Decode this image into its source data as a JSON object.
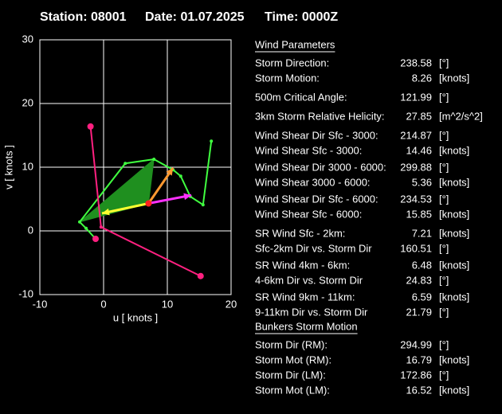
{
  "header": {
    "station": "Station: 08001",
    "date": "Date: 01.07.2025",
    "time": "Time: 0000Z"
  },
  "chart_data": {
    "type": "hodograph",
    "x_label": "u  [ knots ]",
    "y_label": "v  [ knots ]",
    "xlim": [
      -10,
      20
    ],
    "ylim": [
      -10,
      30
    ],
    "xticks": [
      -10,
      0,
      10,
      20
    ],
    "yticks": [
      -10,
      0,
      10,
      20,
      30
    ],
    "grid": true,
    "series": [
      {
        "kind": "area",
        "color": "#1f8f1f",
        "x": [
          -3.75,
          7.9,
          7.05
        ],
        "values": [
          1.4,
          11.25,
          4.31
        ]
      },
      {
        "kind": "line",
        "color": "#40ff40",
        "x": [
          -1.25,
          -2.75,
          -3.75,
          3.4,
          7.9,
          10.9,
          12.1,
          13.6,
          15.6,
          16.9
        ],
        "values": [
          -1.25,
          0.4,
          1.4,
          10.6,
          11.25,
          9.6,
          8.6,
          5.4,
          4.1,
          14.1
        ]
      },
      {
        "kind": "line",
        "color": "#ff2080",
        "x": [
          -2.05,
          -0.4,
          15.22
        ],
        "values": [
          16.39,
          0.6,
          -7.09
        ]
      },
      {
        "kind": "arrow",
        "color": "#ffff30",
        "x": [
          7.05,
          -0.25
        ],
        "values": [
          4.31,
          2.75
        ]
      },
      {
        "kind": "arrow",
        "color": "#ff9930",
        "x": [
          7.05,
          10.9
        ],
        "values": [
          4.31,
          9.9
        ]
      },
      {
        "kind": "arrow",
        "color": "#ff30ff",
        "x": [
          7.05,
          13.75
        ],
        "values": [
          4.31,
          5.6
        ]
      },
      {
        "kind": "points",
        "color": "#ff2020",
        "x": [
          7.05
        ],
        "values": [
          4.31
        ]
      },
      {
        "kind": "points",
        "color": "#ff2080",
        "x": [
          -2.05,
          15.22,
          -1.25
        ],
        "values": [
          16.39,
          -7.09,
          -1.25
        ]
      }
    ]
  },
  "wind_parameters": {
    "title": "Wind Parameters",
    "rows": [
      {
        "label": "Storm Direction:",
        "value": 238.58,
        "unit": "[°]",
        "color": "#ff2020"
      },
      {
        "label": "Storm Motion:",
        "value": 8.26,
        "unit": "[knots]",
        "color": "#ff2020"
      },
      {
        "label": "500m Critical Angle:",
        "value": 121.99,
        "unit": "[°]",
        "color": "#c080ff"
      },
      {
        "label": "3km Storm Relative Helicity:",
        "value": 27.85,
        "unit": "[m^2/s^2]",
        "color": "#40c040"
      },
      {
        "label": "Wind Shear Dir Sfc - 3000:",
        "value": 214.87,
        "unit": "[°]",
        "color": "#40e0e0"
      },
      {
        "label": "Wind Shear Sfc - 3000:",
        "value": 14.46,
        "unit": "[knots]",
        "color": "#40e0e0"
      },
      {
        "label": "Wind Shear Dir 3000 - 6000:",
        "value": 299.88,
        "unit": "[°]",
        "color": "#40e0e0"
      },
      {
        "label": "Wind Shear 3000 - 6000:",
        "value": 5.36,
        "unit": "[knots]",
        "color": "#40e0e0"
      },
      {
        "label": "Wind Shear Dir Sfc - 6000:",
        "value": 234.53,
        "unit": "[°]",
        "color": "#40e0e0"
      },
      {
        "label": "Wind Shear Sfc - 6000:",
        "value": 15.85,
        "unit": "[knots]",
        "color": "#40e0e0"
      },
      {
        "label": "SR Wind Sfc - 2km:",
        "value": 7.21,
        "unit": "[knots]",
        "color": "#ffff40"
      },
      {
        "label": "Sfc-2km Dir vs. Storm Dir",
        "value": 160.51,
        "unit": "[°]",
        "color": "#ffff40"
      },
      {
        "label": "SR Wind 4km - 6km:",
        "value": 6.48,
        "unit": "[knots]",
        "color": "#ff9930"
      },
      {
        "label": "4-6km Dir vs. Storm Dir",
        "value": 24.83,
        "unit": "[°]",
        "color": "#ff9930"
      },
      {
        "label": "SR Wind 9km - 11km:",
        "value": 6.59,
        "unit": "[knots]",
        "color": "#ff40ff"
      },
      {
        "label": "9-11km Dir vs. Storm Dir",
        "value": 21.79,
        "unit": "[°]",
        "color": "#ff40ff"
      }
    ]
  },
  "bunkers": {
    "title": "Bunkers Storm Motion",
    "rows": [
      {
        "label": "Storm Dir (RM):",
        "value": 294.99,
        "unit": "[°]",
        "color": "#ff2080"
      },
      {
        "label": "Storm Mot (RM):",
        "value": 16.79,
        "unit": "[knots]",
        "color": "#ff2080"
      },
      {
        "label": "Storm Dir (LM):",
        "value": 172.86,
        "unit": "[°]",
        "color": "#ff2080"
      },
      {
        "label": "Storm Mot (LM):",
        "value": 16.52,
        "unit": "[knots]",
        "color": "#ff2080"
      }
    ]
  }
}
